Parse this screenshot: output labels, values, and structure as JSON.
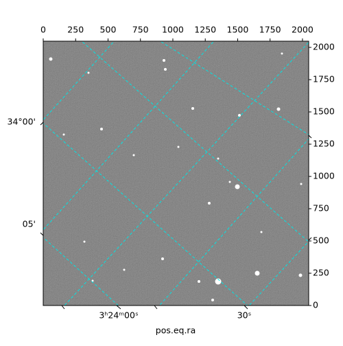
{
  "chart_data": {
    "type": "image",
    "xlabel": "pos.eq.ra",
    "xlim": [
      0,
      2048
    ],
    "xticks": [
      0,
      250,
      500,
      750,
      1000,
      1250,
      1500,
      1750,
      2000
    ],
    "ylim": [
      0,
      2048
    ],
    "yticks": [
      0,
      250,
      500,
      750,
      1000,
      1250,
      1500,
      1750,
      2000
    ],
    "ra_ticks": [
      "3ʰ24ᵐ00ˢ",
      "30ˢ"
    ],
    "dec_ticks": [
      "34°00'",
      "05'"
    ]
  }
}
